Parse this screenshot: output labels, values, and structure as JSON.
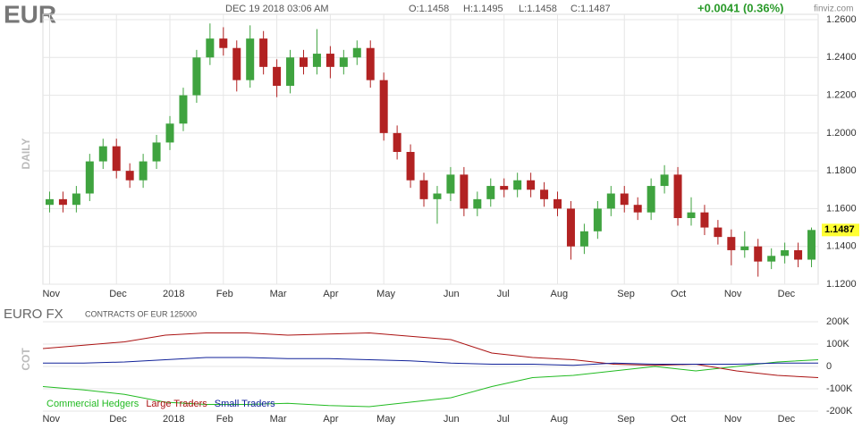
{
  "header": {
    "symbol": "EUR",
    "datetime": "DEC 19 2018 03:06 AM",
    "open": "O:1.1458",
    "high": "H:1.1495",
    "low": "L:1.1458",
    "close": "C:1.1487",
    "change": "+0.0041 (0.36%)",
    "brand": "finviz.com"
  },
  "chart_data": [
    {
      "type": "candlestick",
      "y_label": "DAILY",
      "categories": [
        "Nov",
        null,
        null,
        null,
        null,
        "Dec",
        null,
        null,
        null,
        "2018",
        null,
        null,
        null,
        "Feb",
        null,
        null,
        null,
        "Mar",
        null,
        null,
        null,
        "Apr",
        null,
        null,
        null,
        "May",
        null,
        null,
        null,
        null,
        "Jun",
        null,
        null,
        null,
        "Jul",
        null,
        null,
        null,
        "Aug",
        null,
        null,
        null,
        null,
        "Sep",
        null,
        null,
        null,
        "Oct",
        null,
        null,
        null,
        "Nov",
        null,
        null,
        null,
        "Dec",
        null,
        null
      ],
      "open": [
        1.162,
        1.165,
        1.162,
        1.168,
        1.185,
        1.193,
        1.18,
        1.175,
        1.185,
        1.195,
        1.205,
        1.22,
        1.24,
        1.25,
        1.245,
        1.228,
        1.25,
        1.235,
        1.225,
        1.24,
        1.235,
        1.242,
        1.235,
        1.24,
        1.245,
        1.228,
        1.2,
        1.19,
        1.175,
        1.165,
        1.168,
        1.178,
        1.16,
        1.165,
        1.172,
        1.17,
        1.175,
        1.17,
        1.165,
        1.16,
        1.14,
        1.148,
        1.16,
        1.168,
        1.162,
        1.158,
        1.172,
        1.178,
        1.155,
        1.158,
        1.15,
        1.145,
        1.138,
        1.14,
        1.132,
        1.135,
        1.138,
        1.133
      ],
      "high": [
        1.169,
        1.169,
        1.172,
        1.189,
        1.197,
        1.197,
        1.184,
        1.189,
        1.199,
        1.209,
        1.224,
        1.244,
        1.258,
        1.256,
        1.249,
        1.257,
        1.254,
        1.239,
        1.244,
        1.244,
        1.255,
        1.246,
        1.244,
        1.249,
        1.249,
        1.232,
        1.204,
        1.194,
        1.179,
        1.172,
        1.182,
        1.182,
        1.169,
        1.176,
        1.176,
        1.179,
        1.179,
        1.174,
        1.169,
        1.164,
        1.152,
        1.164,
        1.172,
        1.172,
        1.166,
        1.176,
        1.183,
        1.182,
        1.166,
        1.162,
        1.154,
        1.149,
        1.148,
        1.144,
        1.139,
        1.142,
        1.142,
        1.15
      ],
      "low": [
        1.158,
        1.158,
        1.158,
        1.164,
        1.181,
        1.176,
        1.171,
        1.171,
        1.181,
        1.191,
        1.201,
        1.216,
        1.236,
        1.241,
        1.222,
        1.224,
        1.231,
        1.219,
        1.221,
        1.231,
        1.231,
        1.229,
        1.231,
        1.236,
        1.224,
        1.196,
        1.186,
        1.171,
        1.161,
        1.152,
        1.164,
        1.156,
        1.156,
        1.161,
        1.166,
        1.166,
        1.166,
        1.161,
        1.156,
        1.133,
        1.136,
        1.144,
        1.156,
        1.158,
        1.154,
        1.154,
        1.168,
        1.151,
        1.151,
        1.146,
        1.141,
        1.13,
        1.134,
        1.124,
        1.128,
        1.131,
        1.129,
        1.129
      ],
      "close": [
        1.165,
        1.162,
        1.168,
        1.185,
        1.193,
        1.18,
        1.175,
        1.185,
        1.195,
        1.205,
        1.22,
        1.24,
        1.25,
        1.245,
        1.228,
        1.25,
        1.235,
        1.225,
        1.24,
        1.235,
        1.242,
        1.235,
        1.24,
        1.245,
        1.228,
        1.2,
        1.19,
        1.175,
        1.165,
        1.168,
        1.178,
        1.16,
        1.165,
        1.172,
        1.17,
        1.175,
        1.17,
        1.165,
        1.16,
        1.14,
        1.148,
        1.16,
        1.168,
        1.162,
        1.158,
        1.172,
        1.178,
        1.155,
        1.158,
        1.15,
        1.145,
        1.138,
        1.14,
        1.132,
        1.135,
        1.138,
        1.133,
        1.1487
      ],
      "up_color": "#3fa33f",
      "down_color": "#b22222",
      "ylim": [
        1.12,
        1.26
      ],
      "yticks": [
        {
          "value": 1.12,
          "label": "1.1200"
        },
        {
          "value": 1.14,
          "label": "1.1400"
        },
        {
          "value": 1.16,
          "label": "1.1600"
        },
        {
          "value": 1.18,
          "label": "1.1800"
        },
        {
          "value": 1.2,
          "label": "1.2000"
        },
        {
          "value": 1.22,
          "label": "1.2200"
        },
        {
          "value": 1.24,
          "label": "1.2400"
        },
        {
          "value": 1.26,
          "label": "1.2600"
        }
      ],
      "grid": true
    },
    {
      "type": "line",
      "title": "EURO FX",
      "subtitle": "CONTRACTS OF EUR 125000",
      "y_label": "COT",
      "series": [
        {
          "name": "Commercial Hedgers",
          "color": "#22bb22",
          "values": [
            -90000,
            -105000,
            -125000,
            -160000,
            -170000,
            -170000,
            -165000,
            -175000,
            -180000,
            -160000,
            -140000,
            -90000,
            -50000,
            -40000,
            -20000,
            0,
            -20000,
            0,
            20000,
            30000
          ]
        },
        {
          "name": "Large Traders",
          "color": "#aa1111",
          "values": [
            80000,
            95000,
            110000,
            140000,
            150000,
            150000,
            140000,
            145000,
            150000,
            135000,
            120000,
            60000,
            40000,
            30000,
            10000,
            5000,
            10000,
            -20000,
            -40000,
            -50000
          ]
        },
        {
          "name": "Small Traders",
          "color": "#112299",
          "values": [
            15000,
            15000,
            20000,
            30000,
            40000,
            40000,
            35000,
            35000,
            30000,
            25000,
            15000,
            10000,
            10000,
            5000,
            15000,
            10000,
            10000,
            10000,
            15000,
            15000
          ]
        }
      ],
      "ylim": [
        -200000,
        200000
      ],
      "yticks": [
        {
          "value": -200000,
          "label": "-200K"
        },
        {
          "value": -100000,
          "label": "-100K"
        },
        0,
        {
          "value": 100000,
          "label": "100K"
        },
        {
          "value": 200000,
          "label": "200K"
        }
      ],
      "grid": true
    }
  ]
}
